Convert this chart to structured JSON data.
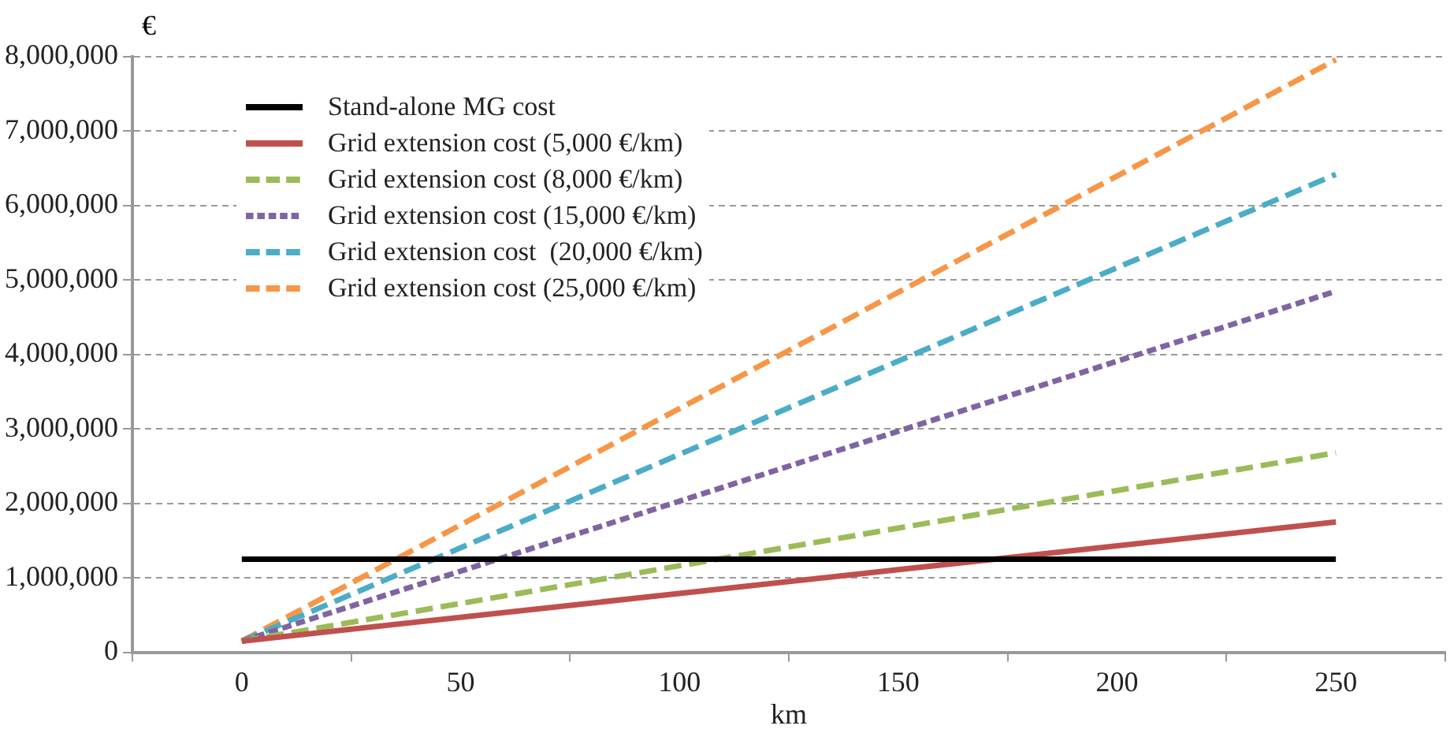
{
  "chart_data": {
    "type": "line",
    "xlabel": "km",
    "ylabel": "€",
    "x": [
      0,
      250
    ],
    "series": [
      {
        "name": "Stand-alone MG cost",
        "color": "#000000",
        "values": [
          1250000,
          1250000
        ],
        "line_style": "solid"
      },
      {
        "name": "Grid extension cost (5,000 €/km)",
        "color": "#c0504d",
        "values": [
          150000,
          1750000
        ],
        "line_style": "solid"
      },
      {
        "name": "Grid extension cost (8,000 €/km)",
        "color": "#9bbb59",
        "values": [
          150000,
          2680000
        ],
        "line_style": "dashed"
      },
      {
        "name": "Grid extension cost (15,000 €/km)",
        "color": "#8064a2",
        "values": [
          150000,
          4850000
        ],
        "line_style": "dotted"
      },
      {
        "name": "Grid extension cost  (20,000 €/km)",
        "color": "#4bacc6",
        "values": [
          150000,
          6420000
        ],
        "line_style": "dashed"
      },
      {
        "name": "Grid extension cost (25,000 €/km)",
        "color": "#f79646",
        "values": [
          150000,
          7960000
        ],
        "line_style": "dashed"
      }
    ],
    "xlim": [
      -25,
      275
    ],
    "xticks": [
      {
        "value": -25,
        "label": null
      },
      0,
      {
        "value": 25,
        "label": null
      },
      50,
      {
        "value": 75,
        "label": null
      },
      100,
      {
        "value": 125,
        "label": null
      },
      150,
      {
        "value": 175,
        "label": null
      },
      200,
      {
        "value": 225,
        "label": null
      },
      250,
      {
        "value": 275,
        "label": null
      }
    ],
    "ylim": [
      0,
      8000000
    ],
    "yticks": [
      0,
      {
        "value": 1000000,
        "label": "1,000,000"
      },
      {
        "value": 2000000,
        "label": "2,000,000"
      },
      {
        "value": 3000000,
        "label": "3,000,000"
      },
      {
        "value": 4000000,
        "label": "4,000,000"
      },
      {
        "value": 5000000,
        "label": "5,000,000"
      },
      {
        "value": 6000000,
        "label": "6,000,000"
      },
      {
        "value": 7000000,
        "label": "7,000,000"
      },
      {
        "value": 8000000,
        "label": "8,000,000"
      }
    ],
    "grid": "y",
    "legend": "top left",
    "marker": "none"
  }
}
